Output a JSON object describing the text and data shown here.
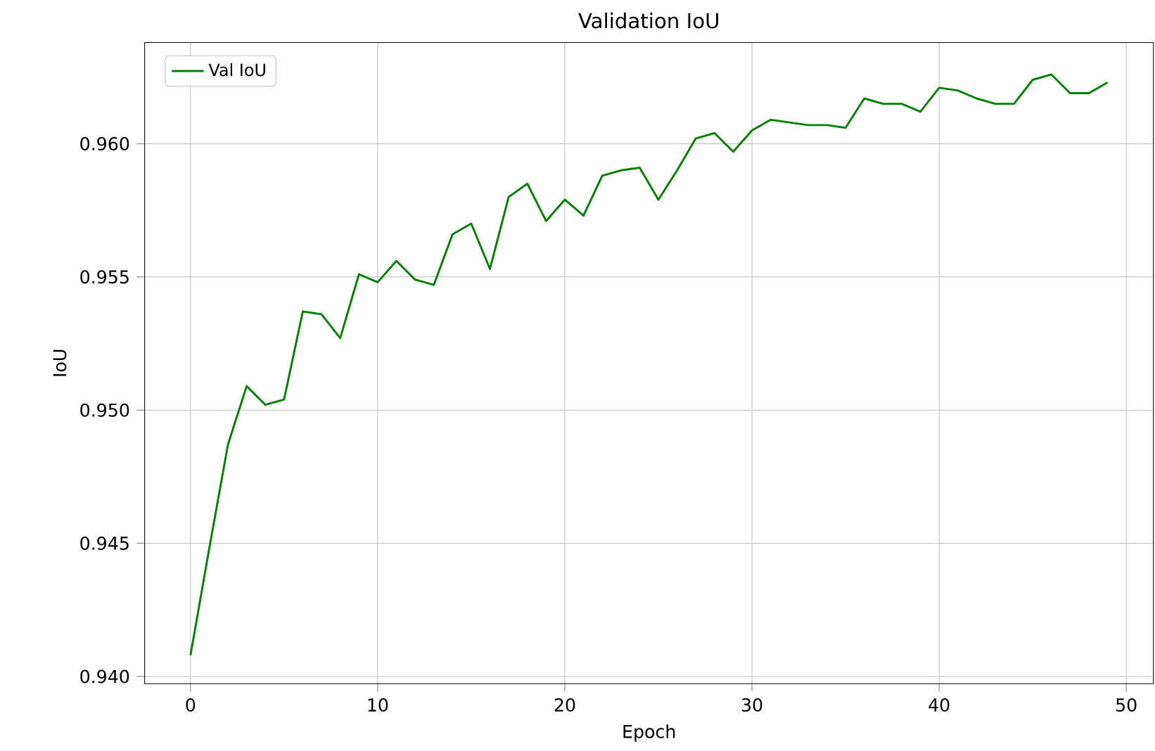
{
  "chart_data": {
    "type": "line",
    "title": "Validation IoU",
    "xlabel": "Epoch",
    "ylabel": "IoU",
    "x": [
      0,
      1,
      2,
      3,
      4,
      5,
      6,
      7,
      8,
      9,
      10,
      11,
      12,
      13,
      14,
      15,
      16,
      17,
      18,
      19,
      20,
      21,
      22,
      23,
      24,
      25,
      26,
      27,
      28,
      29,
      30,
      31,
      32,
      33,
      34,
      35,
      36,
      37,
      38,
      39,
      40,
      41,
      42,
      43,
      44,
      45,
      46,
      47,
      48,
      49
    ],
    "series": [
      {
        "name": "Val IoU",
        "color": "#008000",
        "values": [
          0.9408,
          0.9448,
          0.9487,
          0.9509,
          0.9502,
          0.9504,
          0.9537,
          0.9536,
          0.9527,
          0.9551,
          0.9548,
          0.9556,
          0.9549,
          0.9547,
          0.9566,
          0.957,
          0.9553,
          0.958,
          0.9585,
          0.9571,
          0.9579,
          0.9573,
          0.9588,
          0.959,
          0.9591,
          0.9579,
          0.959,
          0.9602,
          0.9604,
          0.9597,
          0.9605,
          0.9609,
          0.9608,
          0.9607,
          0.9607,
          0.9606,
          0.9617,
          0.9615,
          0.9615,
          0.9612,
          0.9621,
          0.962,
          0.9617,
          0.9615,
          0.9615,
          0.9624,
          0.9626,
          0.9619,
          0.9619,
          0.9623
        ]
      }
    ],
    "xlim": [
      -2.45,
      51.45
    ],
    "ylim": [
      0.93973,
      0.9638
    ],
    "xticks": [
      0,
      10,
      20,
      30,
      40,
      50
    ],
    "yticks": [
      {
        "value": 0.94,
        "label": "0.940"
      },
      {
        "value": 0.945,
        "label": "0.945"
      },
      {
        "value": 0.95,
        "label": "0.950"
      },
      {
        "value": 0.955,
        "label": "0.955"
      },
      {
        "value": 0.96,
        "label": "0.960"
      }
    ],
    "grid": true,
    "legend": "top left",
    "marker": "none",
    "line_style": "solid"
  }
}
